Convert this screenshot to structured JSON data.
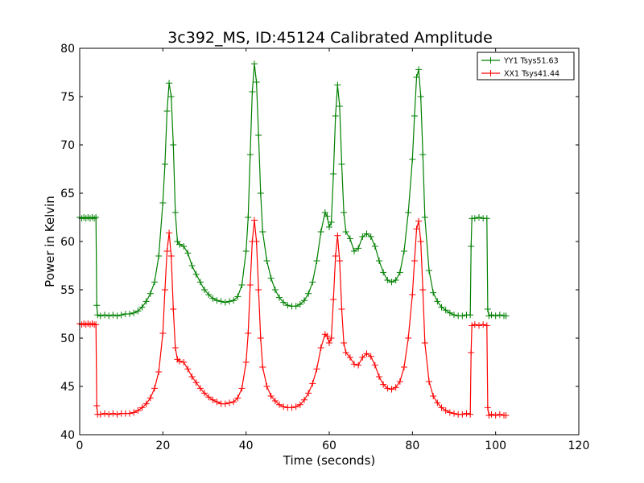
{
  "chart_data": {
    "type": "line",
    "title": "3c392_MS, ID:45124 Calibrated Amplitude",
    "xlabel": "Time (seconds)",
    "ylabel": "Power in Kelvin",
    "xlim": [
      0,
      120
    ],
    "ylim": [
      40,
      80
    ],
    "xticks": [
      0,
      20,
      40,
      60,
      80,
      100,
      120
    ],
    "yticks": [
      40,
      45,
      50,
      55,
      60,
      65,
      70,
      75,
      80
    ],
    "grid": false,
    "legend_position": "top-right",
    "marker": "+",
    "series": [
      {
        "name": "YY1 Tsys51.63",
        "color": "#008000",
        "points": [
          [
            0.0,
            62.5
          ],
          [
            0.5,
            62.4
          ],
          [
            1.0,
            62.5
          ],
          [
            1.5,
            62.4
          ],
          [
            2.0,
            62.5
          ],
          [
            2.5,
            62.4
          ],
          [
            3.0,
            62.5
          ],
          [
            3.5,
            62.4
          ],
          [
            3.9,
            62.5
          ],
          [
            4.1,
            53.4
          ],
          [
            4.3,
            52.4
          ],
          [
            5.0,
            52.3
          ],
          [
            6.0,
            52.4
          ],
          [
            7.0,
            52.3
          ],
          [
            8.0,
            52.4
          ],
          [
            9.0,
            52.3
          ],
          [
            10.0,
            52.4
          ],
          [
            11.0,
            52.5
          ],
          [
            12.0,
            52.5
          ],
          [
            13.0,
            52.6
          ],
          [
            14.0,
            52.8
          ],
          [
            15.0,
            53.2
          ],
          [
            16.0,
            53.8
          ],
          [
            17.0,
            54.6
          ],
          [
            18.0,
            55.8
          ],
          [
            19.0,
            58.5
          ],
          [
            20.0,
            64.0
          ],
          [
            20.5,
            68.0
          ],
          [
            21.0,
            73.5
          ],
          [
            21.5,
            76.4
          ],
          [
            22.0,
            75.0
          ],
          [
            22.5,
            70.0
          ],
          [
            23.0,
            63.0
          ],
          [
            23.5,
            60.0
          ],
          [
            24.0,
            59.7
          ],
          [
            25.0,
            59.5
          ],
          [
            26.0,
            58.8
          ],
          [
            27.0,
            57.5
          ],
          [
            28.0,
            56.6
          ],
          [
            29.0,
            55.8
          ],
          [
            30.0,
            55.0
          ],
          [
            31.0,
            54.5
          ],
          [
            32.0,
            54.1
          ],
          [
            33.0,
            53.9
          ],
          [
            34.0,
            53.8
          ],
          [
            35.0,
            53.7
          ],
          [
            36.0,
            53.8
          ],
          [
            37.0,
            53.9
          ],
          [
            38.0,
            54.3
          ],
          [
            39.0,
            55.5
          ],
          [
            40.0,
            59.0
          ],
          [
            40.5,
            62.5
          ],
          [
            41.0,
            69.0
          ],
          [
            41.5,
            75.5
          ],
          [
            42.0,
            78.4
          ],
          [
            42.5,
            76.5
          ],
          [
            43.0,
            71.0
          ],
          [
            43.5,
            65.0
          ],
          [
            44.0,
            61.0
          ],
          [
            45.0,
            58.0
          ],
          [
            46.0,
            56.2
          ],
          [
            47.0,
            55.0
          ],
          [
            48.0,
            54.2
          ],
          [
            49.0,
            53.7
          ],
          [
            50.0,
            53.4
          ],
          [
            51.0,
            53.3
          ],
          [
            52.0,
            53.3
          ],
          [
            53.0,
            53.5
          ],
          [
            54.0,
            53.9
          ],
          [
            55.0,
            54.6
          ],
          [
            56.0,
            55.8
          ],
          [
            57.0,
            58.0
          ],
          [
            58.0,
            61.0
          ],
          [
            59.0,
            63.0
          ],
          [
            59.5,
            62.6
          ],
          [
            60.0,
            61.5
          ],
          [
            60.5,
            62.0
          ],
          [
            61.0,
            67.0
          ],
          [
            61.5,
            73.0
          ],
          [
            62.0,
            76.2
          ],
          [
            62.5,
            74.0
          ],
          [
            63.0,
            68.0
          ],
          [
            63.5,
            63.0
          ],
          [
            64.0,
            61.0
          ],
          [
            65.0,
            60.3
          ],
          [
            66.0,
            59.0
          ],
          [
            67.0,
            59.3
          ],
          [
            68.0,
            60.5
          ],
          [
            69.0,
            60.8
          ],
          [
            70.0,
            60.5
          ],
          [
            71.0,
            59.5
          ],
          [
            72.0,
            58.0
          ],
          [
            73.0,
            56.8
          ],
          [
            74.0,
            56.0
          ],
          [
            75.0,
            55.8
          ],
          [
            76.0,
            56.0
          ],
          [
            77.0,
            56.8
          ],
          [
            78.0,
            59.0
          ],
          [
            79.0,
            63.0
          ],
          [
            80.0,
            68.5
          ],
          [
            80.5,
            73.0
          ],
          [
            81.0,
            77.0
          ],
          [
            81.5,
            77.8
          ],
          [
            82.0,
            75.0
          ],
          [
            82.5,
            69.0
          ],
          [
            83.0,
            62.5
          ],
          [
            84.0,
            57.0
          ],
          [
            85.0,
            54.7
          ],
          [
            86.0,
            53.8
          ],
          [
            87.0,
            53.2
          ],
          [
            88.0,
            52.9
          ],
          [
            89.0,
            52.6
          ],
          [
            90.0,
            52.4
          ],
          [
            91.0,
            52.3
          ],
          [
            92.0,
            52.3
          ],
          [
            93.0,
            52.4
          ],
          [
            93.9,
            52.4
          ],
          [
            94.1,
            59.5
          ],
          [
            94.3,
            62.4
          ],
          [
            95.0,
            62.4
          ],
          [
            96.0,
            62.5
          ],
          [
            97.0,
            62.4
          ],
          [
            97.9,
            62.4
          ],
          [
            98.1,
            53.0
          ],
          [
            98.4,
            52.3
          ],
          [
            99.0,
            52.4
          ],
          [
            100.0,
            52.3
          ],
          [
            101.0,
            52.4
          ],
          [
            102.0,
            52.3
          ],
          [
            102.5,
            52.3
          ]
        ]
      },
      {
        "name": "XX1 Tsys41.44",
        "color": "#ff0000",
        "points": [
          [
            0.0,
            51.5
          ],
          [
            0.5,
            51.4
          ],
          [
            1.0,
            51.5
          ],
          [
            1.5,
            51.4
          ],
          [
            2.0,
            51.5
          ],
          [
            2.5,
            51.4
          ],
          [
            3.0,
            51.5
          ],
          [
            3.5,
            51.4
          ],
          [
            3.9,
            51.4
          ],
          [
            4.1,
            43.0
          ],
          [
            4.3,
            42.1
          ],
          [
            5.0,
            42.1
          ],
          [
            6.0,
            42.2
          ],
          [
            7.0,
            42.1
          ],
          [
            8.0,
            42.2
          ],
          [
            9.0,
            42.1
          ],
          [
            10.0,
            42.2
          ],
          [
            11.0,
            42.2
          ],
          [
            12.0,
            42.2
          ],
          [
            13.0,
            42.3
          ],
          [
            14.0,
            42.5
          ],
          [
            15.0,
            42.8
          ],
          [
            16.0,
            43.2
          ],
          [
            17.0,
            43.8
          ],
          [
            18.0,
            44.8
          ],
          [
            19.0,
            46.5
          ],
          [
            20.0,
            50.5
          ],
          [
            20.5,
            55.0
          ],
          [
            21.0,
            59.0
          ],
          [
            21.5,
            60.9
          ],
          [
            22.0,
            58.5
          ],
          [
            22.5,
            53.0
          ],
          [
            23.0,
            49.0
          ],
          [
            23.5,
            47.8
          ],
          [
            24.0,
            47.6
          ],
          [
            25.0,
            47.5
          ],
          [
            26.0,
            46.8
          ],
          [
            27.0,
            46.0
          ],
          [
            28.0,
            45.4
          ],
          [
            29.0,
            44.8
          ],
          [
            30.0,
            44.3
          ],
          [
            31.0,
            43.9
          ],
          [
            32.0,
            43.6
          ],
          [
            33.0,
            43.4
          ],
          [
            34.0,
            43.2
          ],
          [
            35.0,
            43.2
          ],
          [
            36.0,
            43.3
          ],
          [
            37.0,
            43.4
          ],
          [
            38.0,
            43.8
          ],
          [
            39.0,
            44.8
          ],
          [
            40.0,
            47.5
          ],
          [
            40.5,
            50.5
          ],
          [
            41.0,
            55.5
          ],
          [
            41.5,
            60.0
          ],
          [
            42.0,
            62.2
          ],
          [
            42.5,
            60.0
          ],
          [
            43.0,
            55.0
          ],
          [
            43.5,
            50.0
          ],
          [
            44.0,
            47.0
          ],
          [
            45.0,
            45.0
          ],
          [
            46.0,
            44.0
          ],
          [
            47.0,
            43.5
          ],
          [
            48.0,
            43.1
          ],
          [
            49.0,
            42.9
          ],
          [
            50.0,
            42.8
          ],
          [
            51.0,
            42.8
          ],
          [
            52.0,
            42.9
          ],
          [
            53.0,
            43.1
          ],
          [
            54.0,
            43.6
          ],
          [
            55.0,
            44.3
          ],
          [
            56.0,
            45.3
          ],
          [
            57.0,
            46.8
          ],
          [
            58.0,
            49.0
          ],
          [
            59.0,
            50.4
          ],
          [
            59.5,
            50.2
          ],
          [
            60.0,
            49.5
          ],
          [
            60.5,
            50.0
          ],
          [
            61.0,
            54.0
          ],
          [
            61.5,
            58.5
          ],
          [
            62.0,
            60.6
          ],
          [
            62.5,
            58.0
          ],
          [
            63.0,
            53.0
          ],
          [
            63.5,
            49.5
          ],
          [
            64.0,
            48.5
          ],
          [
            65.0,
            48.0
          ],
          [
            66.0,
            47.3
          ],
          [
            67.0,
            47.2
          ],
          [
            68.0,
            48.0
          ],
          [
            69.0,
            48.4
          ],
          [
            70.0,
            48.1
          ],
          [
            71.0,
            47.2
          ],
          [
            72.0,
            46.0
          ],
          [
            73.0,
            45.2
          ],
          [
            74.0,
            44.8
          ],
          [
            75.0,
            44.7
          ],
          [
            76.0,
            44.9
          ],
          [
            77.0,
            45.5
          ],
          [
            78.0,
            47.0
          ],
          [
            79.0,
            50.0
          ],
          [
            80.0,
            54.5
          ],
          [
            80.5,
            58.0
          ],
          [
            81.0,
            61.3
          ],
          [
            81.5,
            62.1
          ],
          [
            82.0,
            60.0
          ],
          [
            82.5,
            55.0
          ],
          [
            83.0,
            49.5
          ],
          [
            84.0,
            45.5
          ],
          [
            85.0,
            44.0
          ],
          [
            86.0,
            43.3
          ],
          [
            87.0,
            42.8
          ],
          [
            88.0,
            42.5
          ],
          [
            89.0,
            42.3
          ],
          [
            90.0,
            42.2
          ],
          [
            91.0,
            42.1
          ],
          [
            92.0,
            42.1
          ],
          [
            93.0,
            42.2
          ],
          [
            93.9,
            42.1
          ],
          [
            94.1,
            48.5
          ],
          [
            94.3,
            51.3
          ],
          [
            95.0,
            51.4
          ],
          [
            96.0,
            51.3
          ],
          [
            97.0,
            51.4
          ],
          [
            97.9,
            51.3
          ],
          [
            98.1,
            42.8
          ],
          [
            98.4,
            42.0
          ],
          [
            99.0,
            42.1
          ],
          [
            100.0,
            42.0
          ],
          [
            101.0,
            42.1
          ],
          [
            102.0,
            42.0
          ],
          [
            102.5,
            42.0
          ]
        ]
      }
    ]
  }
}
